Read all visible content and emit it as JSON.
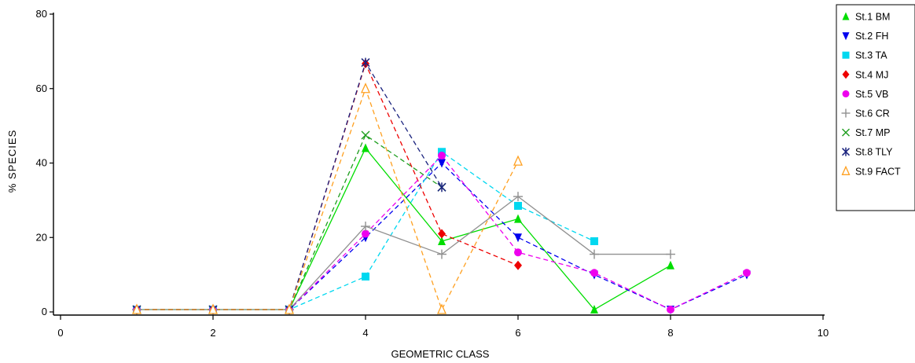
{
  "chart_data": {
    "type": "line",
    "title": "",
    "xlabel": "GEOMETRIC CLASS",
    "ylabel": "% SPECIES",
    "xlim": [
      0,
      10
    ],
    "ylim": [
      0,
      80
    ],
    "x_ticks": [
      "0",
      "2",
      "4",
      "6",
      "8",
      "10"
    ],
    "y_ticks": [
      "0",
      "20",
      "40",
      "60",
      "80"
    ],
    "grid": false,
    "legend_position": "top-right",
    "series": [
      {
        "name": "St.1 BM",
        "color": "#00dd00",
        "marker": "triangle-up",
        "dash": "solid",
        "points": [
          [
            1,
            0
          ],
          [
            2,
            0
          ],
          [
            3,
            0
          ],
          [
            4,
            44
          ],
          [
            5,
            19
          ],
          [
            6,
            25
          ],
          [
            7,
            0
          ],
          [
            8,
            12.5
          ]
        ]
      },
      {
        "name": "St.2 FH",
        "color": "#0000ee",
        "marker": "triangle-down",
        "dash": "dashed",
        "points": [
          [
            1,
            0
          ],
          [
            2,
            0
          ],
          [
            3,
            0
          ],
          [
            4,
            20
          ],
          [
            5,
            40
          ],
          [
            6,
            20
          ],
          [
            7,
            10
          ],
          [
            8,
            0
          ],
          [
            9,
            10
          ]
        ]
      },
      {
        "name": "St.3 TA",
        "color": "#00d8f0",
        "marker": "square",
        "dash": "dashed",
        "points": [
          [
            1,
            0
          ],
          [
            2,
            0
          ],
          [
            3,
            0
          ],
          [
            4,
            9.5
          ],
          [
            5,
            43
          ],
          [
            6,
            28.5
          ],
          [
            7,
            19
          ]
        ]
      },
      {
        "name": "St.4 MJ",
        "color": "#ee0000",
        "marker": "diamond",
        "dash": "dashed",
        "points": [
          [
            1,
            0
          ],
          [
            2,
            0
          ],
          [
            3,
            0
          ],
          [
            4,
            66.7
          ],
          [
            5,
            21
          ],
          [
            6,
            12.5
          ]
        ]
      },
      {
        "name": "St.5 VB",
        "color": "#ee00ee",
        "marker": "circle",
        "dash": "dashed",
        "points": [
          [
            1,
            0
          ],
          [
            2,
            0
          ],
          [
            3,
            0
          ],
          [
            4,
            21
          ],
          [
            5,
            42
          ],
          [
            6,
            16
          ],
          [
            7,
            10.5
          ],
          [
            8,
            0
          ],
          [
            9,
            10.5
          ]
        ]
      },
      {
        "name": "St.6 CR",
        "color": "#909090",
        "marker": "plus",
        "dash": "solid",
        "points": [
          [
            1,
            0
          ],
          [
            2,
            0
          ],
          [
            3,
            0
          ],
          [
            4,
            23
          ],
          [
            5,
            15.5
          ],
          [
            6,
            31
          ],
          [
            7,
            15.5
          ],
          [
            8,
            15.5
          ]
        ]
      },
      {
        "name": "St.7 MP",
        "color": "#1e9e1e",
        "marker": "x",
        "dash": "dashed",
        "points": [
          [
            1,
            0
          ],
          [
            2,
            0
          ],
          [
            3,
            0
          ],
          [
            4,
            47.5
          ],
          [
            5,
            33.5
          ]
        ]
      },
      {
        "name": "St.8 TLY",
        "color": "#1a237e",
        "marker": "asterisk",
        "dash": "dashed",
        "points": [
          [
            1,
            0
          ],
          [
            2,
            0
          ],
          [
            3,
            0
          ],
          [
            4,
            67
          ],
          [
            5,
            33.5
          ]
        ]
      },
      {
        "name": "St.9 FACT",
        "color": "#ffa020",
        "marker": "triangle-open",
        "dash": "dashed",
        "points": [
          [
            1,
            0
          ],
          [
            2,
            0
          ],
          [
            3,
            0
          ],
          [
            4,
            60
          ],
          [
            5,
            0
          ],
          [
            6,
            40.5
          ]
        ]
      }
    ]
  }
}
